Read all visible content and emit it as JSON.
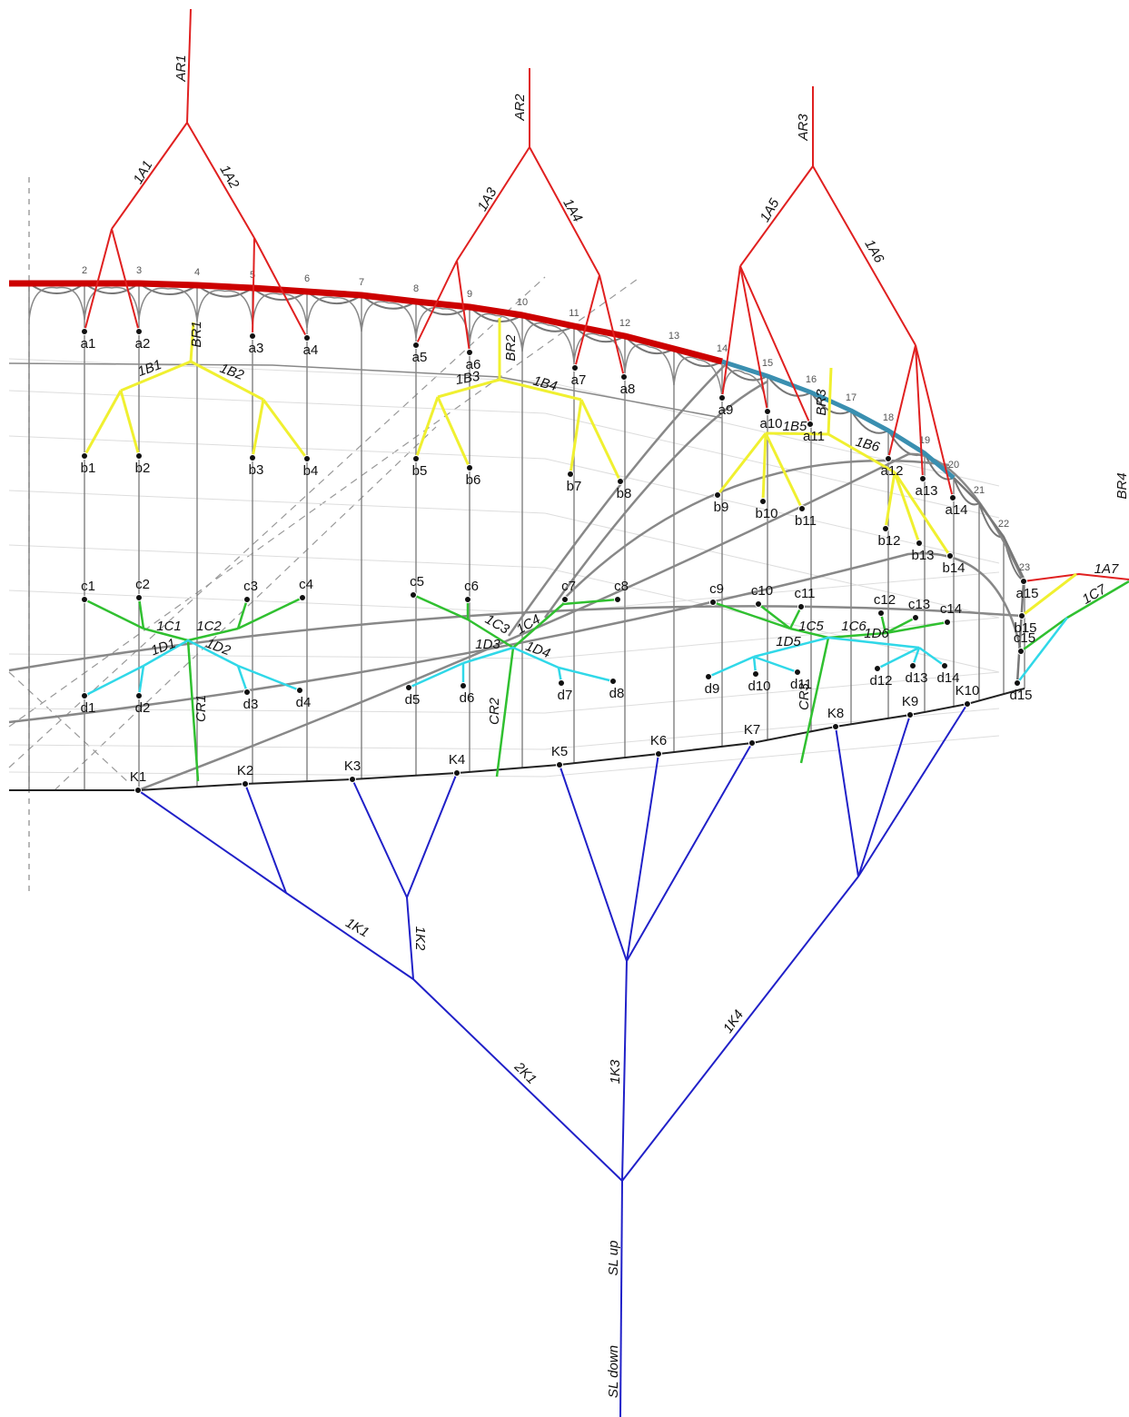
{
  "ribs": [
    2,
    3,
    4,
    5,
    6,
    7,
    8,
    9,
    10,
    11,
    12,
    13,
    14,
    15,
    16,
    17,
    18,
    19,
    20,
    21,
    22,
    23
  ],
  "a": {
    "points": [
      "a1",
      "a2",
      "a3",
      "a4",
      "a5",
      "a6",
      "a7",
      "a8",
      "a9",
      "a10",
      "a11",
      "a12",
      "a13",
      "a14",
      "a15"
    ],
    "mains": [
      "AR1",
      "AR2",
      "AR3",
      "BR4"
    ],
    "cascades": [
      "1A1",
      "1A2",
      "1A3",
      "1A4",
      "1A5",
      "1A6",
      "1A7"
    ]
  },
  "b": {
    "points": [
      "b1",
      "b2",
      "b3",
      "b4",
      "b5",
      "b6",
      "b7",
      "b8",
      "b9",
      "b10",
      "b11",
      "b12",
      "b13",
      "b14",
      "b15"
    ],
    "mains": [
      "BR1",
      "BR2",
      "BR3"
    ],
    "cascades": [
      "1B1",
      "1B2",
      "1B3",
      "1B4",
      "1B5",
      "1B6"
    ]
  },
  "c": {
    "points": [
      "c1",
      "c2",
      "c3",
      "c4",
      "c5",
      "c6",
      "c7",
      "c8",
      "c9",
      "c10",
      "c11",
      "c12",
      "c13",
      "c14",
      "c15"
    ],
    "mains": [
      "CR1",
      "CR2",
      "CR3"
    ],
    "cascades": [
      "1C1",
      "1C2",
      "1C3",
      "1C4",
      "1C5",
      "1C6",
      "1C7"
    ]
  },
  "d": {
    "points": [
      "d1",
      "d2",
      "d3",
      "d4",
      "d5",
      "d6",
      "d7",
      "d8",
      "d9",
      "d10",
      "d11",
      "d12",
      "d13",
      "d14",
      "d15"
    ],
    "cascades": [
      "1D1",
      "1D2",
      "1D3",
      "1D4",
      "1D5",
      "1D6"
    ]
  },
  "k": {
    "points": [
      "K1",
      "K2",
      "K3",
      "K4",
      "K5",
      "K6",
      "K7",
      "K8",
      "K9",
      "K10"
    ],
    "cascades": [
      "1K1",
      "1K2",
      "2K1",
      "1K3",
      "1K4"
    ],
    "mains": [
      "SL up",
      "SL down"
    ]
  }
}
